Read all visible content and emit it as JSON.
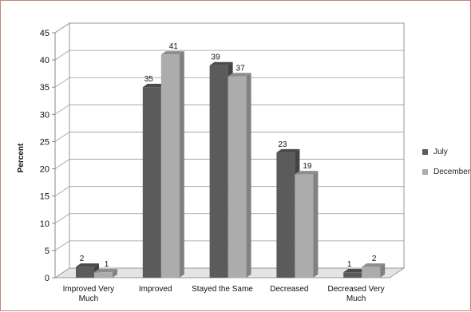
{
  "chart_data": {
    "type": "bar",
    "title": "",
    "xlabel": "",
    "ylabel": "Percent",
    "ylim": [
      0,
      45
    ],
    "yticks": [
      0,
      5,
      10,
      15,
      20,
      25,
      30,
      35,
      40,
      45
    ],
    "categories": [
      [
        "Improved Very",
        "Much"
      ],
      [
        "Improved"
      ],
      [
        "Stayed the Same"
      ],
      [
        "Decreased"
      ],
      [
        "Decreased Very",
        "Much"
      ]
    ],
    "series": [
      {
        "name": "July",
        "values": [
          2,
          35,
          39,
          23,
          1
        ],
        "color": "#5b5b5b"
      },
      {
        "name": "December",
        "values": [
          1,
          41,
          37,
          19,
          2
        ],
        "color": "#acacac"
      }
    ],
    "grid": true,
    "legend_position": "right",
    "style": "3d"
  }
}
